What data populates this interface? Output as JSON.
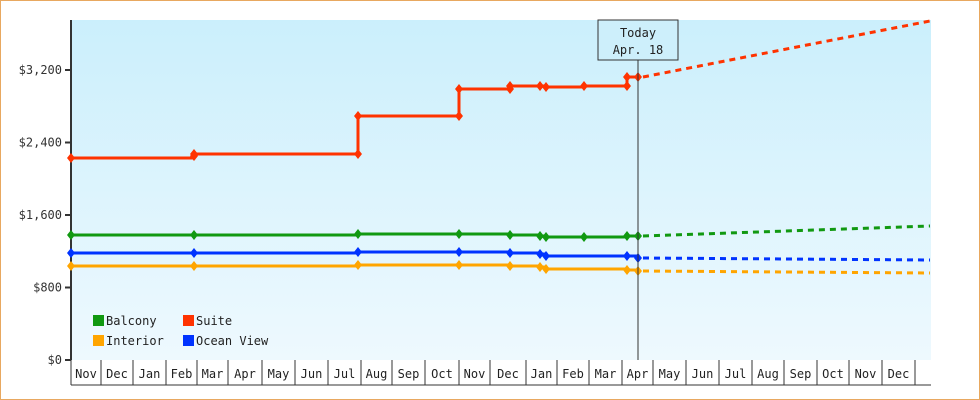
{
  "chart_data": {
    "type": "line",
    "title": "",
    "xlabel": "",
    "ylabel": "",
    "ylim": [
      0,
      3800
    ],
    "y_ticks": [
      "$0",
      "$800",
      "$1,600",
      "$2,400",
      "$3,200"
    ],
    "x_ticks": [
      "Nov",
      "Dec",
      "Jan",
      "Feb",
      "Mar",
      "Apr",
      "May",
      "Jun",
      "Jul",
      "Aug",
      "Sep",
      "Oct",
      "Nov",
      "Dec",
      "Jan",
      "Feb",
      "Mar",
      "Apr",
      "May",
      "Jun",
      "Jul",
      "Aug",
      "Sep",
      "Oct",
      "Nov",
      "Dec"
    ],
    "grid": false,
    "legend_position": "bottom-left inside",
    "today_marker": {
      "line1": "Today",
      "line2": "Apr. 18"
    },
    "series": [
      {
        "name": "Balcony",
        "color": "#119911",
        "style": "solid+dashed forecast",
        "points": [
          [
            "Nov",
            1380
          ],
          [
            "Mar",
            1385
          ],
          [
            "Aug",
            1395
          ],
          [
            "Nov",
            1390
          ],
          [
            "Dec",
            1385
          ],
          [
            "Jan",
            1370
          ],
          [
            "Jan",
            1360
          ],
          [
            "Mar",
            1365
          ],
          [
            "Apr",
            1375
          ],
          [
            "Apr",
            1370
          ]
        ],
        "forecast": [
          [
            "Apr",
            1370
          ],
          [
            "Dec",
            1480
          ]
        ]
      },
      {
        "name": "Suite",
        "color": "#ff3300",
        "style": "solid+dashed forecast",
        "points": [
          [
            "Nov",
            2230
          ],
          [
            "Mar",
            2260
          ],
          [
            "Mar",
            2280
          ],
          [
            "Aug",
            2280
          ],
          [
            "Aug",
            2700
          ],
          [
            "Nov",
            2700
          ],
          [
            "Nov",
            2990
          ],
          [
            "Dec",
            2990
          ],
          [
            "Dec",
            3020
          ],
          [
            "Jan",
            3020
          ],
          [
            "Jan",
            3010
          ],
          [
            "Feb",
            3020
          ],
          [
            "Apr",
            3020
          ],
          [
            "Apr",
            3120
          ]
        ],
        "forecast": [
          [
            "Apr",
            3120
          ],
          [
            "Dec",
            3750
          ]
        ]
      },
      {
        "name": "Interior",
        "color": "#ffa500",
        "style": "solid+dashed forecast",
        "points": [
          [
            "Nov",
            1040
          ],
          [
            "Mar",
            1040
          ],
          [
            "Aug",
            1050
          ],
          [
            "Nov",
            1055
          ],
          [
            "Dec",
            1045
          ],
          [
            "Jan",
            1030
          ],
          [
            "Jan",
            1020
          ],
          [
            "Apr",
            1010
          ],
          [
            "Apr",
            990
          ]
        ],
        "forecast": [
          [
            "Apr",
            990
          ],
          [
            "Dec",
            960
          ]
        ]
      },
      {
        "name": "Ocean View",
        "color": "#0033ff",
        "style": "solid+dashed forecast",
        "points": [
          [
            "Nov",
            1180
          ],
          [
            "Mar",
            1185
          ],
          [
            "Aug",
            1195
          ],
          [
            "Nov",
            1195
          ],
          [
            "Dec",
            1185
          ],
          [
            "Jan",
            1175
          ],
          [
            "Jan",
            1160
          ],
          [
            "Apr",
            1160
          ],
          [
            "Apr",
            1130
          ]
        ],
        "forecast": [
          [
            "Apr",
            1130
          ],
          [
            "Dec",
            1100
          ]
        ]
      }
    ]
  },
  "legend": [
    {
      "label": "Balcony",
      "color": "#119911"
    },
    {
      "label": "Suite",
      "color": "#ff3300"
    },
    {
      "label": "Interior",
      "color": "#ffa500"
    },
    {
      "label": "Ocean View",
      "color": "#0033ff"
    }
  ],
  "today": {
    "line1": "Today",
    "line2": "Apr. 18"
  }
}
